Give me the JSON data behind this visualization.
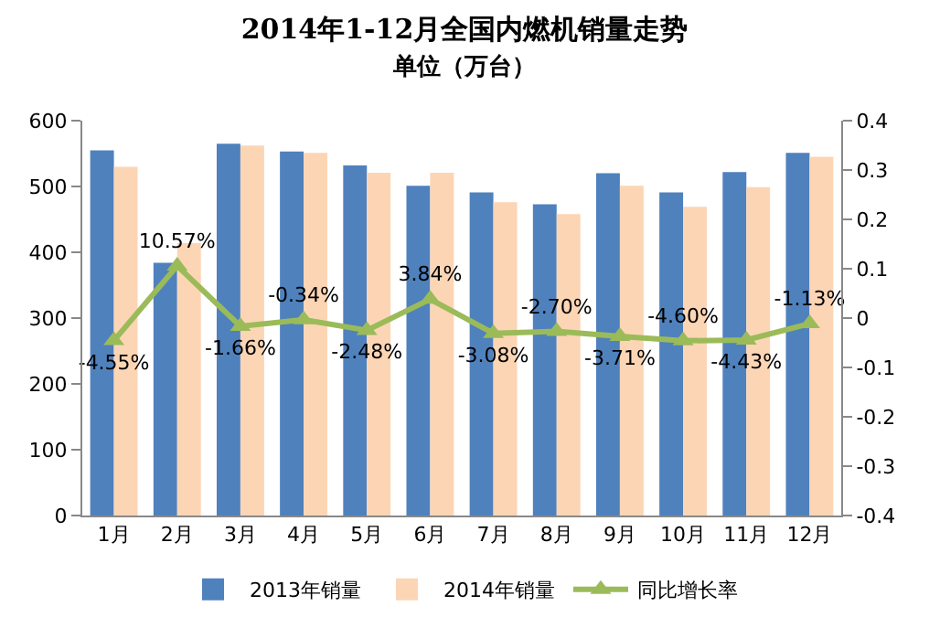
{
  "chart_data": {
    "type": "bar",
    "title": "2014年1-12月全国内燃机销量走势",
    "subtitle": "单位（万台）",
    "categories": [
      "1月",
      "2月",
      "3月",
      "4月",
      "5月",
      "6月",
      "7月",
      "8月",
      "9月",
      "10月",
      "11月",
      "12月"
    ],
    "series": [
      {
        "name": "2013年销量",
        "color": "#4f81bd",
        "values": [
          555,
          384,
          565,
          553,
          532,
          501,
          491,
          473,
          520,
          491,
          522,
          551
        ]
      },
      {
        "name": "2014年销量",
        "color": "#fcd5b5",
        "values": [
          530,
          414,
          562,
          551,
          521,
          521,
          476,
          458,
          501,
          469,
          499,
          545
        ]
      },
      {
        "name": "同比增长率",
        "type": "line",
        "axis": "y2",
        "color": "#9bbb59",
        "marker": "triangle",
        "values": [
          -0.0455,
          0.1057,
          -0.0166,
          -0.0034,
          -0.0248,
          0.0384,
          -0.0308,
          -0.027,
          -0.0371,
          -0.046,
          -0.0443,
          -0.0113
        ],
        "value_labels": [
          "-4.55%",
          "10.57%",
          "-1.66%",
          "-0.34%",
          "-2.48%",
          "3.84%",
          "-3.08%",
          "-2.70%",
          "-3.71%",
          "-4.60%",
          "-4.43%",
          "-1.13%"
        ]
      }
    ],
    "ylim": [
      0,
      600
    ],
    "yticks": [
      0,
      100,
      200,
      300,
      400,
      500,
      600
    ],
    "y2lim": [
      -0.4,
      0.4
    ],
    "y2ticks": [
      -0.4,
      -0.3,
      -0.2,
      -0.1,
      0,
      0.1,
      0.2,
      0.3,
      0.4
    ],
    "grid": false,
    "legend": "bottom"
  }
}
